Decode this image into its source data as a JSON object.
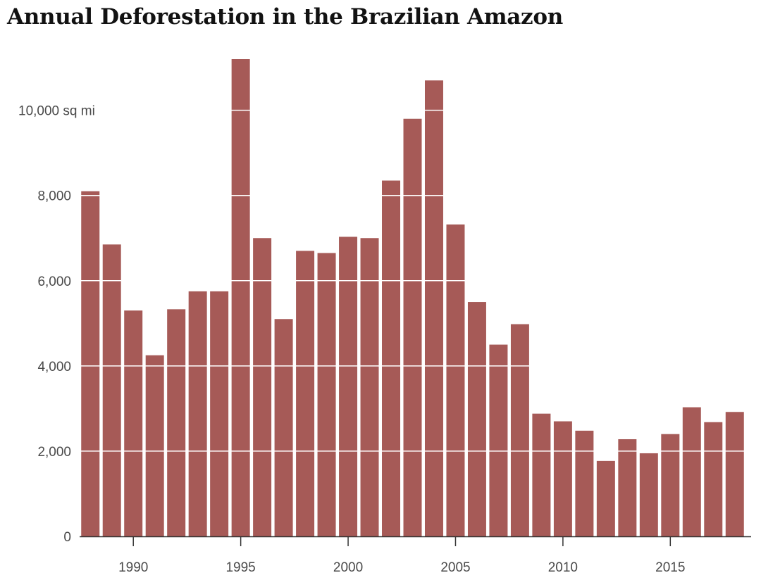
{
  "chart_data": {
    "type": "bar",
    "title": "Annual Deforestation in the Brazilian Amazon",
    "xlabel": "",
    "ylabel": "",
    "unit_label": "10,000 sq mi",
    "x": [
      1988,
      1989,
      1990,
      1991,
      1992,
      1993,
      1994,
      1995,
      1996,
      1997,
      1998,
      1999,
      2000,
      2001,
      2002,
      2003,
      2004,
      2005,
      2006,
      2007,
      2008,
      2009,
      2010,
      2011,
      2012,
      2013,
      2014,
      2015,
      2016,
      2017,
      2018
    ],
    "values": [
      8100,
      6850,
      5300,
      4250,
      5330,
      5750,
      5750,
      11200,
      7000,
      5100,
      6700,
      6650,
      7030,
      7000,
      8350,
      9800,
      10700,
      7320,
      5500,
      4500,
      4980,
      2880,
      2700,
      2480,
      1770,
      2280,
      1950,
      2400,
      3030,
      2680,
      2920
    ],
    "ylim": [
      0,
      11200
    ],
    "yticks": [
      {
        "value": 0,
        "label": "0"
      },
      {
        "value": 2000,
        "label": "2,000"
      },
      {
        "value": 4000,
        "label": "4,000"
      },
      {
        "value": 6000,
        "label": "6,000"
      },
      {
        "value": 8000,
        "label": "8,000"
      },
      {
        "value": 10000,
        "label": "10,000 sq mi"
      }
    ],
    "xticks": [
      {
        "value": 1990,
        "label": "1990"
      },
      {
        "value": 1995,
        "label": "1995"
      },
      {
        "value": 2000,
        "label": "2000"
      },
      {
        "value": 2005,
        "label": "2005"
      },
      {
        "value": 2010,
        "label": "2010"
      },
      {
        "value": 2015,
        "label": "2015"
      }
    ],
    "grid": true,
    "colors": {
      "bar": "#a65a57",
      "grid": "#ffffff",
      "axis": "#333333",
      "text": "#4a4a4a",
      "title": "#121212"
    }
  }
}
